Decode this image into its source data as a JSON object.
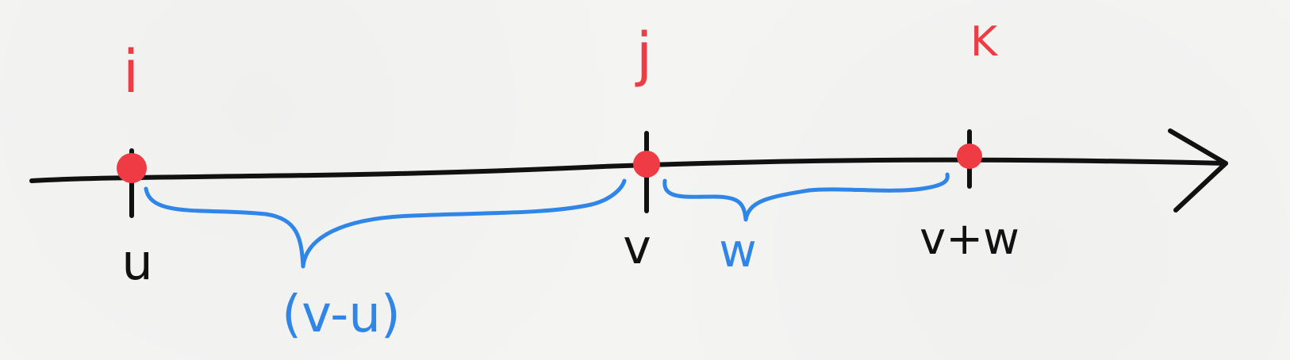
{
  "points": [
    {
      "id": "i",
      "value_label": "u"
    },
    {
      "id": "j",
      "value_label": "v"
    },
    {
      "id": "k",
      "value_label": "v+w"
    }
  ],
  "top_labels": {
    "i": "i",
    "j": "j",
    "k": "K"
  },
  "bottom_labels": {
    "u": "u",
    "v": "v",
    "v_plus_w": "v+w"
  },
  "brace_labels": {
    "v_minus_u": "(v-u)",
    "w": "w"
  },
  "colors": {
    "axis": "#111111",
    "point": "#ef3b44",
    "brace": "#2f86e8",
    "top_label": "#ef3b44",
    "bottom_label": "#111111"
  }
}
